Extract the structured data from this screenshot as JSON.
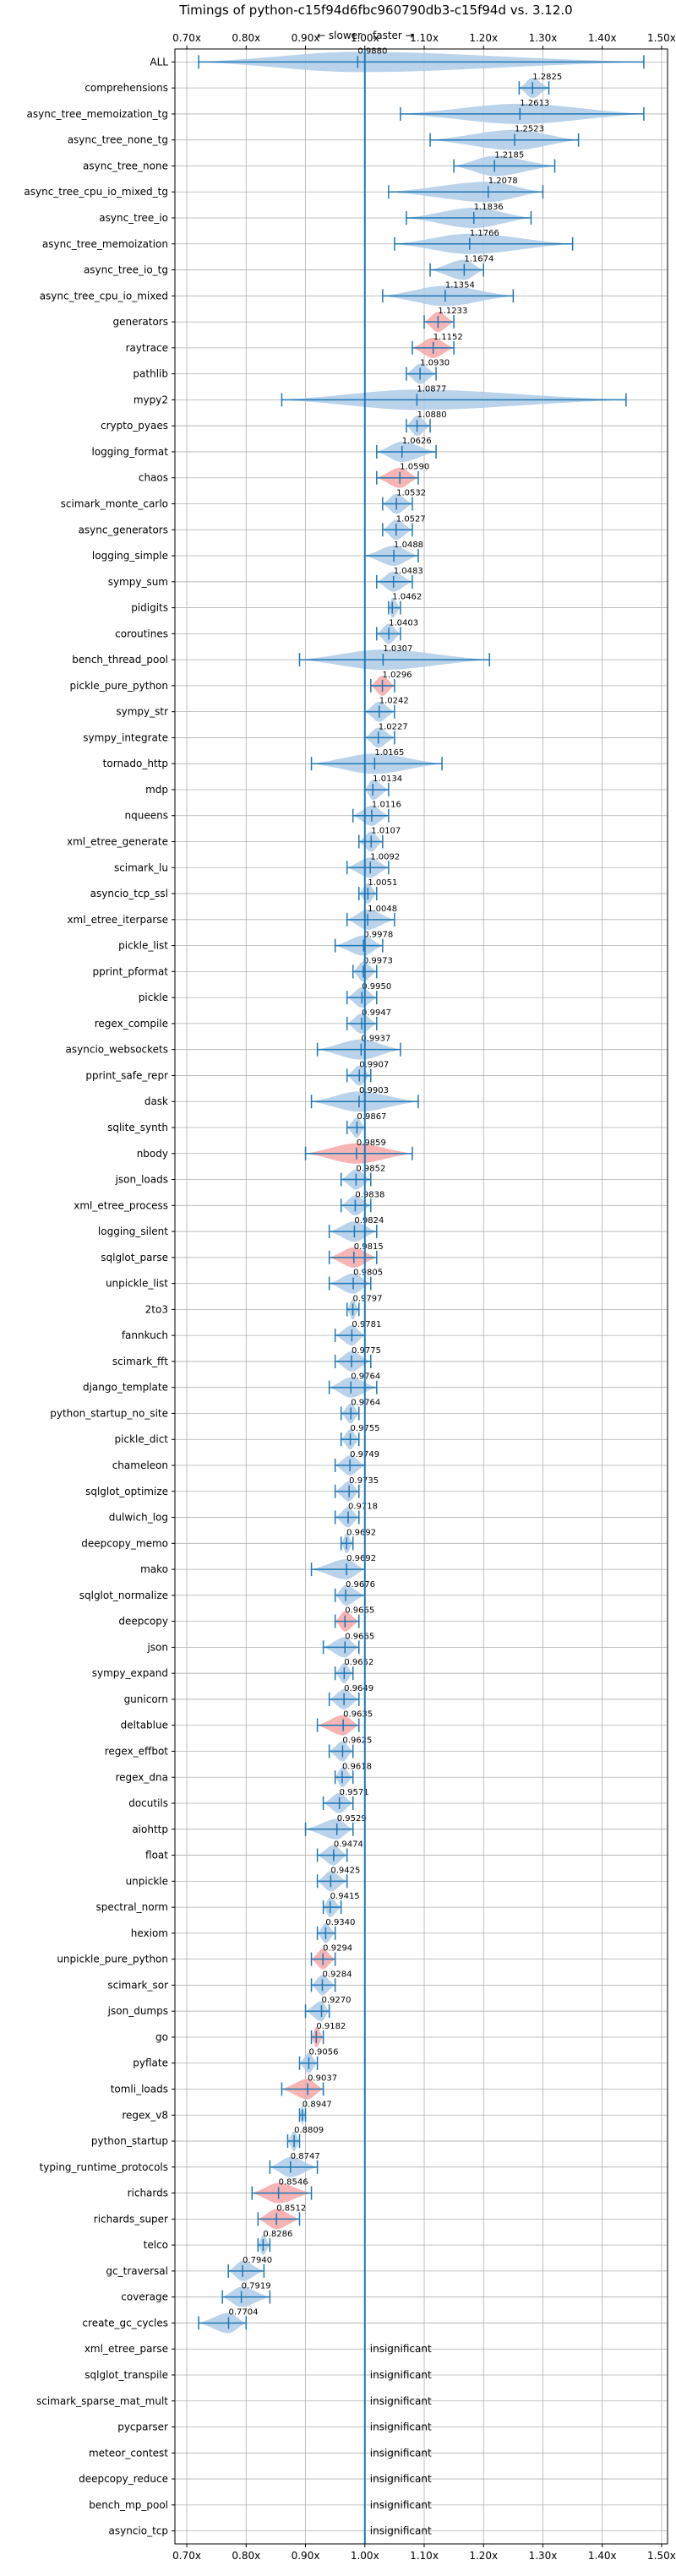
{
  "chart_data": {
    "type": "violin",
    "title": "Timings of python-c15f94d6fbc960790db3-c15f94d vs. 3.12.0",
    "annotation_slower": "← slower",
    "annotation_faster": "faster →",
    "xlim": [
      0.68,
      1.51
    ],
    "xticks": [
      "0.70x",
      "0.80x",
      "0.90x",
      "1.00x",
      "1.10x",
      "1.20x",
      "1.30x",
      "1.40x",
      "1.50x"
    ],
    "xtick_values": [
      0.7,
      0.8,
      0.9,
      1.0,
      1.1,
      1.2,
      1.3,
      1.4,
      1.5
    ],
    "grid": true,
    "insignificant_label": "insignificant",
    "benchmarks": [
      {
        "name": "ALL",
        "value": 0.988,
        "label": "0.9880",
        "min": 0.72,
        "max": 1.47,
        "sig": "mixed"
      },
      {
        "name": "comprehensions",
        "value": 1.2825,
        "label": "1.2825",
        "min": 1.26,
        "max": 1.31,
        "sig": "faster"
      },
      {
        "name": "async_tree_memoization_tg",
        "value": 1.2613,
        "label": "1.2613",
        "min": 1.06,
        "max": 1.47,
        "sig": "faster"
      },
      {
        "name": "async_tree_none_tg",
        "value": 1.2523,
        "label": "1.2523",
        "min": 1.11,
        "max": 1.36,
        "sig": "faster"
      },
      {
        "name": "async_tree_none",
        "value": 1.2185,
        "label": "1.2185",
        "min": 1.15,
        "max": 1.32,
        "sig": "faster"
      },
      {
        "name": "async_tree_cpu_io_mixed_tg",
        "value": 1.2078,
        "label": "1.2078",
        "min": 1.04,
        "max": 1.3,
        "sig": "faster"
      },
      {
        "name": "async_tree_io",
        "value": 1.1836,
        "label": "1.1836",
        "min": 1.07,
        "max": 1.28,
        "sig": "faster"
      },
      {
        "name": "async_tree_memoization",
        "value": 1.1766,
        "label": "1.1766",
        "min": 1.05,
        "max": 1.35,
        "sig": "faster"
      },
      {
        "name": "async_tree_io_tg",
        "value": 1.1674,
        "label": "1.1674",
        "min": 1.11,
        "max": 1.2,
        "sig": "faster"
      },
      {
        "name": "async_tree_cpu_io_mixed",
        "value": 1.1354,
        "label": "1.1354",
        "min": 1.03,
        "max": 1.25,
        "sig": "faster"
      },
      {
        "name": "generators",
        "value": 1.1233,
        "label": "1.1233",
        "min": 1.1,
        "max": 1.15,
        "sig": "slower"
      },
      {
        "name": "raytrace",
        "value": 1.1152,
        "label": "1.1152",
        "min": 1.08,
        "max": 1.15,
        "sig": "slower"
      },
      {
        "name": "pathlib",
        "value": 1.093,
        "label": "1.0930",
        "min": 1.07,
        "max": 1.12,
        "sig": "faster"
      },
      {
        "name": "mypy2",
        "value": 1.0877,
        "label": "1.0877",
        "min": 0.86,
        "max": 1.44,
        "sig": "faster"
      },
      {
        "name": "crypto_pyaes",
        "value": 1.088,
        "label": "1.0880",
        "min": 1.07,
        "max": 1.11,
        "sig": "faster"
      },
      {
        "name": "logging_format",
        "value": 1.0626,
        "label": "1.0626",
        "min": 1.02,
        "max": 1.12,
        "sig": "faster"
      },
      {
        "name": "chaos",
        "value": 1.059,
        "label": "1.0590",
        "min": 1.02,
        "max": 1.09,
        "sig": "slower"
      },
      {
        "name": "scimark_monte_carlo",
        "value": 1.0532,
        "label": "1.0532",
        "min": 1.03,
        "max": 1.08,
        "sig": "faster"
      },
      {
        "name": "async_generators",
        "value": 1.0527,
        "label": "1.0527",
        "min": 1.03,
        "max": 1.08,
        "sig": "faster"
      },
      {
        "name": "logging_simple",
        "value": 1.0488,
        "label": "1.0488",
        "min": 1.0,
        "max": 1.09,
        "sig": "faster"
      },
      {
        "name": "sympy_sum",
        "value": 1.0483,
        "label": "1.0483",
        "min": 1.02,
        "max": 1.08,
        "sig": "faster"
      },
      {
        "name": "pidigits",
        "value": 1.0462,
        "label": "1.0462",
        "min": 1.04,
        "max": 1.06,
        "sig": "faster"
      },
      {
        "name": "coroutines",
        "value": 1.0403,
        "label": "1.0403",
        "min": 1.02,
        "max": 1.06,
        "sig": "faster"
      },
      {
        "name": "bench_thread_pool",
        "value": 1.0307,
        "label": "1.0307",
        "min": 0.89,
        "max": 1.21,
        "sig": "faster"
      },
      {
        "name": "pickle_pure_python",
        "value": 1.0296,
        "label": "1.0296",
        "min": 1.01,
        "max": 1.05,
        "sig": "slower"
      },
      {
        "name": "sympy_str",
        "value": 1.0242,
        "label": "1.0242",
        "min": 1.0,
        "max": 1.05,
        "sig": "faster"
      },
      {
        "name": "sympy_integrate",
        "value": 1.0227,
        "label": "1.0227",
        "min": 1.0,
        "max": 1.05,
        "sig": "faster"
      },
      {
        "name": "tornado_http",
        "value": 1.0165,
        "label": "1.0165",
        "min": 0.91,
        "max": 1.13,
        "sig": "faster"
      },
      {
        "name": "mdp",
        "value": 1.0134,
        "label": "1.0134",
        "min": 1.0,
        "max": 1.04,
        "sig": "faster"
      },
      {
        "name": "nqueens",
        "value": 1.0116,
        "label": "1.0116",
        "min": 0.98,
        "max": 1.04,
        "sig": "faster"
      },
      {
        "name": "xml_etree_generate",
        "value": 1.0107,
        "label": "1.0107",
        "min": 0.99,
        "max": 1.03,
        "sig": "faster"
      },
      {
        "name": "scimark_lu",
        "value": 1.0092,
        "label": "1.0092",
        "min": 0.97,
        "max": 1.04,
        "sig": "faster"
      },
      {
        "name": "asyncio_tcp_ssl",
        "value": 1.0051,
        "label": "1.0051",
        "min": 0.99,
        "max": 1.02,
        "sig": "faster"
      },
      {
        "name": "xml_etree_iterparse",
        "value": 1.0048,
        "label": "1.0048",
        "min": 0.97,
        "max": 1.05,
        "sig": "faster"
      },
      {
        "name": "pickle_list",
        "value": 0.9978,
        "label": "0.9978",
        "min": 0.95,
        "max": 1.03,
        "sig": "faster"
      },
      {
        "name": "pprint_pformat",
        "value": 0.9973,
        "label": "0.9973",
        "min": 0.98,
        "max": 1.02,
        "sig": "faster"
      },
      {
        "name": "pickle",
        "value": 0.995,
        "label": "0.9950",
        "min": 0.97,
        "max": 1.02,
        "sig": "faster"
      },
      {
        "name": "regex_compile",
        "value": 0.9947,
        "label": "0.9947",
        "min": 0.97,
        "max": 1.02,
        "sig": "faster"
      },
      {
        "name": "asyncio_websockets",
        "value": 0.9937,
        "label": "0.9937",
        "min": 0.92,
        "max": 1.06,
        "sig": "faster"
      },
      {
        "name": "pprint_safe_repr",
        "value": 0.9907,
        "label": "0.9907",
        "min": 0.97,
        "max": 1.01,
        "sig": "faster"
      },
      {
        "name": "dask",
        "value": 0.9903,
        "label": "0.9903",
        "min": 0.91,
        "max": 1.09,
        "sig": "faster"
      },
      {
        "name": "sqlite_synth",
        "value": 0.9867,
        "label": "0.9867",
        "min": 0.97,
        "max": 1.0,
        "sig": "faster"
      },
      {
        "name": "nbody",
        "value": 0.9859,
        "label": "0.9859",
        "min": 0.9,
        "max": 1.08,
        "sig": "slower"
      },
      {
        "name": "json_loads",
        "value": 0.9852,
        "label": "0.9852",
        "min": 0.96,
        "max": 1.01,
        "sig": "faster"
      },
      {
        "name": "xml_etree_process",
        "value": 0.9838,
        "label": "0.9838",
        "min": 0.96,
        "max": 1.01,
        "sig": "faster"
      },
      {
        "name": "logging_silent",
        "value": 0.9824,
        "label": "0.9824",
        "min": 0.94,
        "max": 1.02,
        "sig": "faster"
      },
      {
        "name": "sqlglot_parse",
        "value": 0.9815,
        "label": "0.9815",
        "min": 0.94,
        "max": 1.02,
        "sig": "slower"
      },
      {
        "name": "unpickle_list",
        "value": 0.9805,
        "label": "0.9805",
        "min": 0.94,
        "max": 1.01,
        "sig": "faster"
      },
      {
        "name": "2to3",
        "value": 0.9797,
        "label": "0.9797",
        "min": 0.97,
        "max": 0.99,
        "sig": "faster"
      },
      {
        "name": "fannkuch",
        "value": 0.9781,
        "label": "0.9781",
        "min": 0.95,
        "max": 1.0,
        "sig": "faster"
      },
      {
        "name": "scimark_fft",
        "value": 0.9775,
        "label": "0.9775",
        "min": 0.95,
        "max": 1.01,
        "sig": "faster"
      },
      {
        "name": "django_template",
        "value": 0.9764,
        "label": "0.9764",
        "min": 0.94,
        "max": 1.02,
        "sig": "faster"
      },
      {
        "name": "python_startup_no_site",
        "value": 0.9764,
        "label": "0.9764",
        "min": 0.96,
        "max": 0.99,
        "sig": "faster"
      },
      {
        "name": "pickle_dict",
        "value": 0.9755,
        "label": "0.9755",
        "min": 0.96,
        "max": 0.99,
        "sig": "faster"
      },
      {
        "name": "chameleon",
        "value": 0.9749,
        "label": "0.9749",
        "min": 0.95,
        "max": 1.0,
        "sig": "faster"
      },
      {
        "name": "sqlglot_optimize",
        "value": 0.9735,
        "label": "0.9735",
        "min": 0.95,
        "max": 0.99,
        "sig": "faster"
      },
      {
        "name": "dulwich_log",
        "value": 0.9718,
        "label": "0.9718",
        "min": 0.95,
        "max": 0.99,
        "sig": "faster"
      },
      {
        "name": "deepcopy_memo",
        "value": 0.9692,
        "label": "0.9692",
        "min": 0.96,
        "max": 0.98,
        "sig": "faster"
      },
      {
        "name": "mako",
        "value": 0.9692,
        "label": "0.9692",
        "min": 0.91,
        "max": 1.0,
        "sig": "faster"
      },
      {
        "name": "sqlglot_normalize",
        "value": 0.9676,
        "label": "0.9676",
        "min": 0.95,
        "max": 1.0,
        "sig": "faster"
      },
      {
        "name": "deepcopy",
        "value": 0.9665,
        "label": "0.9665",
        "min": 0.95,
        "max": 0.99,
        "sig": "slower"
      },
      {
        "name": "json",
        "value": 0.9665,
        "label": "0.9665",
        "min": 0.93,
        "max": 0.99,
        "sig": "faster"
      },
      {
        "name": "sympy_expand",
        "value": 0.9652,
        "label": "0.9652",
        "min": 0.95,
        "max": 0.98,
        "sig": "faster"
      },
      {
        "name": "gunicorn",
        "value": 0.9649,
        "label": "0.9649",
        "min": 0.94,
        "max": 0.99,
        "sig": "faster"
      },
      {
        "name": "deltablue",
        "value": 0.9635,
        "label": "0.9635",
        "min": 0.92,
        "max": 0.99,
        "sig": "slower"
      },
      {
        "name": "regex_effbot",
        "value": 0.9625,
        "label": "0.9625",
        "min": 0.94,
        "max": 0.98,
        "sig": "faster"
      },
      {
        "name": "regex_dna",
        "value": 0.9618,
        "label": "0.9618",
        "min": 0.95,
        "max": 0.98,
        "sig": "faster"
      },
      {
        "name": "docutils",
        "value": 0.9571,
        "label": "0.9571",
        "min": 0.93,
        "max": 0.98,
        "sig": "faster"
      },
      {
        "name": "aiohttp",
        "value": 0.9529,
        "label": "0.9529",
        "min": 0.9,
        "max": 0.98,
        "sig": "faster"
      },
      {
        "name": "float",
        "value": 0.9474,
        "label": "0.9474",
        "min": 0.92,
        "max": 0.97,
        "sig": "faster"
      },
      {
        "name": "unpickle",
        "value": 0.9425,
        "label": "0.9425",
        "min": 0.92,
        "max": 0.97,
        "sig": "faster"
      },
      {
        "name": "spectral_norm",
        "value": 0.9415,
        "label": "0.9415",
        "min": 0.93,
        "max": 0.96,
        "sig": "faster"
      },
      {
        "name": "hexiom",
        "value": 0.934,
        "label": "0.9340",
        "min": 0.92,
        "max": 0.95,
        "sig": "faster"
      },
      {
        "name": "unpickle_pure_python",
        "value": 0.9294,
        "label": "0.9294",
        "min": 0.91,
        "max": 0.95,
        "sig": "slower"
      },
      {
        "name": "scimark_sor",
        "value": 0.9284,
        "label": "0.9284",
        "min": 0.91,
        "max": 0.95,
        "sig": "faster"
      },
      {
        "name": "json_dumps",
        "value": 0.927,
        "label": "0.9270",
        "min": 0.9,
        "max": 0.94,
        "sig": "faster"
      },
      {
        "name": "go",
        "value": 0.9182,
        "label": "0.9182",
        "min": 0.91,
        "max": 0.93,
        "sig": "slower"
      },
      {
        "name": "pyflate",
        "value": 0.9056,
        "label": "0.9056",
        "min": 0.89,
        "max": 0.92,
        "sig": "faster"
      },
      {
        "name": "tomli_loads",
        "value": 0.9037,
        "label": "0.9037",
        "min": 0.86,
        "max": 0.93,
        "sig": "slower"
      },
      {
        "name": "regex_v8",
        "value": 0.8947,
        "label": "0.8947",
        "min": 0.89,
        "max": 0.9,
        "sig": "faster"
      },
      {
        "name": "python_startup",
        "value": 0.8809,
        "label": "0.8809",
        "min": 0.87,
        "max": 0.89,
        "sig": "faster"
      },
      {
        "name": "typing_runtime_protocols",
        "value": 0.8747,
        "label": "0.8747",
        "min": 0.84,
        "max": 0.92,
        "sig": "faster"
      },
      {
        "name": "richards",
        "value": 0.8546,
        "label": "0.8546",
        "min": 0.81,
        "max": 0.91,
        "sig": "slower"
      },
      {
        "name": "richards_super",
        "value": 0.8512,
        "label": "0.8512",
        "min": 0.82,
        "max": 0.89,
        "sig": "slower"
      },
      {
        "name": "telco",
        "value": 0.8286,
        "label": "0.8286",
        "min": 0.82,
        "max": 0.84,
        "sig": "faster"
      },
      {
        "name": "gc_traversal",
        "value": 0.794,
        "label": "0.7940",
        "min": 0.77,
        "max": 0.83,
        "sig": "faster"
      },
      {
        "name": "coverage",
        "value": 0.7919,
        "label": "0.7919",
        "min": 0.76,
        "max": 0.84,
        "sig": "faster"
      },
      {
        "name": "create_gc_cycles",
        "value": 0.7704,
        "label": "0.7704",
        "min": 0.72,
        "max": 0.8,
        "sig": "faster"
      },
      {
        "name": "xml_etree_parse",
        "value": null,
        "label": "",
        "sig": "insignificant"
      },
      {
        "name": "sqlglot_transpile",
        "value": null,
        "label": "",
        "sig": "insignificant"
      },
      {
        "name": "scimark_sparse_mat_mult",
        "value": null,
        "label": "",
        "sig": "insignificant"
      },
      {
        "name": "pycparser",
        "value": null,
        "label": "",
        "sig": "insignificant"
      },
      {
        "name": "meteor_contest",
        "value": null,
        "label": "",
        "sig": "insignificant"
      },
      {
        "name": "deepcopy_reduce",
        "value": null,
        "label": "",
        "sig": "insignificant"
      },
      {
        "name": "bench_mp_pool",
        "value": null,
        "label": "",
        "sig": "insignificant"
      },
      {
        "name": "asyncio_tcp",
        "value": null,
        "label": "",
        "sig": "insignificant"
      }
    ],
    "colors": {
      "violin_blue": "#aecbe6",
      "violin_red": "#f4a7a7",
      "whisker": "#1f77b4",
      "grid": "#b0b0b0",
      "axis": "#000000"
    }
  }
}
